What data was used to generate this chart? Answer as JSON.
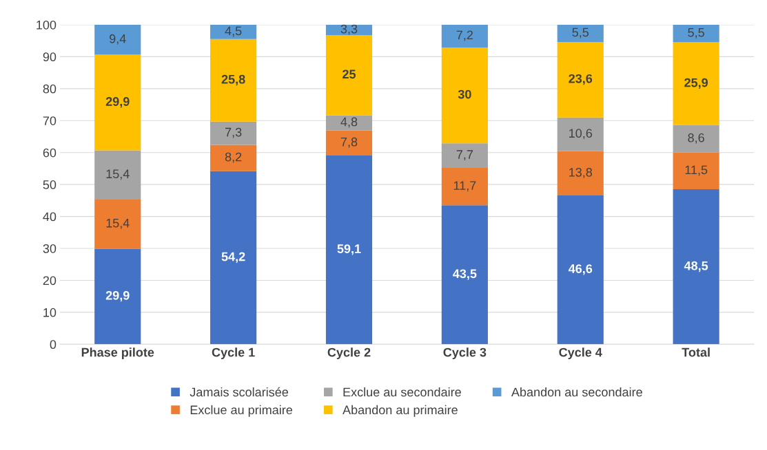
{
  "chart_data": {
    "type": "bar",
    "stacked": true,
    "categories": [
      "Phase pilote",
      "Cycle 1",
      "Cycle 2",
      "Cycle 3",
      "Cycle 4",
      "Total"
    ],
    "series": [
      {
        "name": "Jamais scolarisée",
        "color": "#4472c4",
        "values": [
          29.9,
          54.2,
          59.1,
          43.5,
          46.6,
          48.5
        ],
        "value_labels": [
          "29,9",
          "54,2",
          "59,1",
          "43,5",
          "46,6",
          "48,5"
        ]
      },
      {
        "name": "Exclue au primaire",
        "color": "#ed7d31",
        "values": [
          15.4,
          8.2,
          7.8,
          11.7,
          13.8,
          11.5
        ],
        "value_labels": [
          "15,4",
          "8,2",
          "7,8",
          "11,7",
          "13,8",
          "11,5"
        ]
      },
      {
        "name": "Exclue au secondaire",
        "color": "#a5a5a5",
        "values": [
          15.4,
          7.3,
          4.8,
          7.7,
          10.6,
          8.6
        ],
        "value_labels": [
          "15,4",
          "7,3",
          "4,8",
          "7,7",
          "10,6",
          "8,6"
        ]
      },
      {
        "name": "Abandon au primaire",
        "color": "#ffc000",
        "values": [
          29.9,
          25.8,
          25,
          30,
          23.6,
          25.9
        ],
        "value_labels": [
          "29,9",
          "25,8",
          "25",
          "30",
          "23,6",
          "25,9"
        ]
      },
      {
        "name": "Abandon au secondaire",
        "color": "#5b9bd5",
        "values": [
          9.4,
          4.5,
          3.3,
          7.2,
          5.5,
          5.5
        ],
        "value_labels": [
          "9,4",
          "4,5",
          "3,3",
          "7,2",
          "5,5",
          "5,5"
        ]
      }
    ],
    "ylim": [
      0,
      100
    ],
    "yticks": [
      0,
      10,
      20,
      30,
      40,
      50,
      60,
      70,
      80,
      90,
      100
    ],
    "grid": "y",
    "legend": "bottom"
  }
}
